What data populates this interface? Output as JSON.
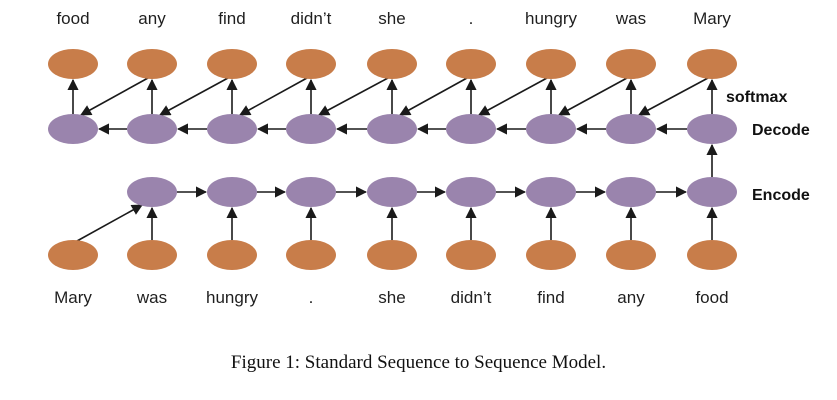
{
  "diagram": {
    "output_words": [
      "food",
      "any",
      "find",
      "didn’t",
      "she",
      ".",
      "hungry",
      "was",
      "Mary"
    ],
    "input_words": [
      "Mary",
      "was",
      "hungry",
      ".",
      "she",
      "didn’t",
      "find",
      "any",
      "food"
    ],
    "labels": {
      "softmax": "softmax",
      "decode": "Decode",
      "encode": "Encode"
    },
    "colors": {
      "word_node": "#c87d4a",
      "hidden_node": "#9a84ad",
      "arrow": "#1a1a1a"
    }
  },
  "caption": "Figure 1: Standard Sequence to Sequence Model."
}
